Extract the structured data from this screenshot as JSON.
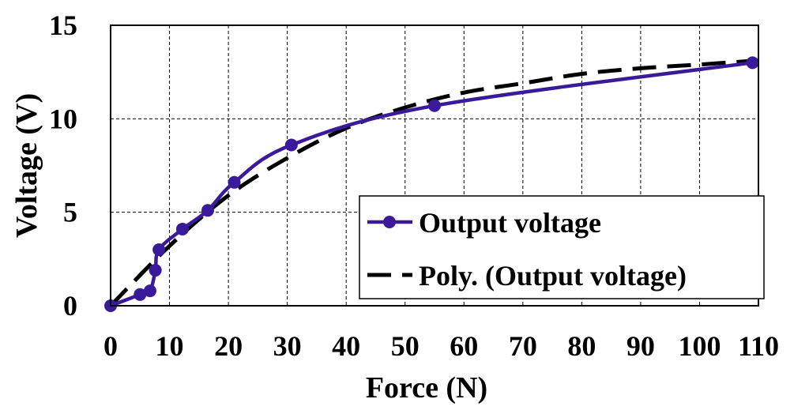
{
  "chart_data": {
    "type": "line",
    "xlabel": "Force (N)",
    "ylabel": "Voltage (V)",
    "xlim": [
      0,
      110
    ],
    "ylim": [
      0,
      15
    ],
    "xticks": [
      "0",
      "10",
      "20",
      "30",
      "40",
      "50",
      "60",
      "70",
      "80",
      "90",
      "100",
      "110"
    ],
    "yticks": [
      "0",
      "5",
      "10",
      "15"
    ],
    "grid": true,
    "legend_position": "bottom-right",
    "series": [
      {
        "name": "Output voltage",
        "style": "line-with-markers",
        "color": "#3a1a9a",
        "points": [
          {
            "x": 0,
            "y": 0
          },
          {
            "x": 5,
            "y": 0.6
          },
          {
            "x": 6.7,
            "y": 0.8
          },
          {
            "x": 7.6,
            "y": 1.9
          },
          {
            "x": 8.2,
            "y": 3.0
          },
          {
            "x": 12.2,
            "y": 4.1
          },
          {
            "x": 16.5,
            "y": 5.1
          },
          {
            "x": 21,
            "y": 6.6
          },
          {
            "x": 30.7,
            "y": 8.6
          },
          {
            "x": 55,
            "y": 10.7
          },
          {
            "x": 109,
            "y": 13.0
          }
        ]
      },
      {
        "name": "Poly. (Output voltage)",
        "style": "dashed-trendline",
        "color": "#000000",
        "points": [
          {
            "x": 0,
            "y": 0
          },
          {
            "x": 10,
            "y": 3.2
          },
          {
            "x": 20,
            "y": 5.9
          },
          {
            "x": 30,
            "y": 7.9
          },
          {
            "x": 40,
            "y": 9.5
          },
          {
            "x": 50,
            "y": 10.6
          },
          {
            "x": 60,
            "y": 11.4
          },
          {
            "x": 70,
            "y": 11.9
          },
          {
            "x": 80,
            "y": 12.4
          },
          {
            "x": 90,
            "y": 12.7
          },
          {
            "x": 100,
            "y": 12.9
          },
          {
            "x": 109,
            "y": 13.1
          }
        ]
      }
    ]
  }
}
